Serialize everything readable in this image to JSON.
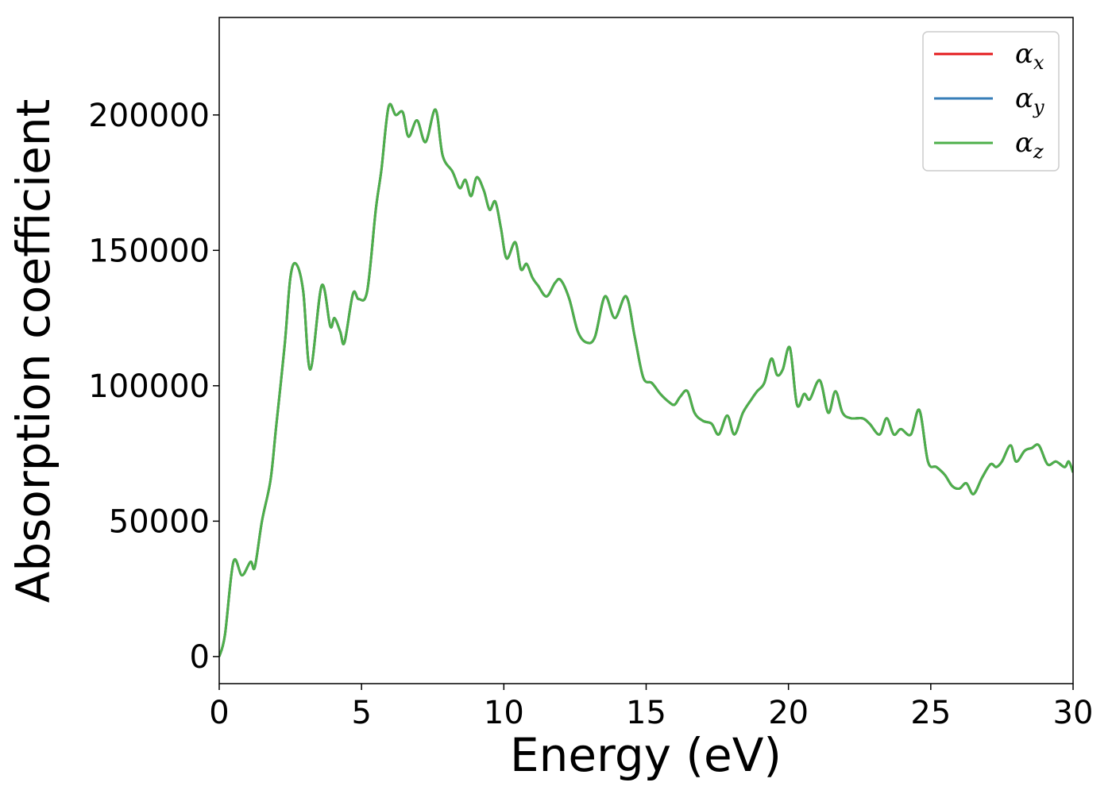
{
  "chart_data": {
    "type": "line",
    "title": "",
    "xlabel": "Energy (eV)",
    "ylabel": "Absorption coefficient",
    "xlim": [
      0,
      30
    ],
    "ylim": [
      -10000,
      236000
    ],
    "xticks": [
      0,
      5,
      10,
      15,
      20,
      25,
      30
    ],
    "xtick_labels": [
      "0",
      "5",
      "10",
      "15",
      "20",
      "25",
      "30"
    ],
    "yticks": [
      0,
      50000,
      100000,
      150000,
      200000
    ],
    "ytick_labels": [
      "0",
      "50000",
      "100000",
      "150000",
      "200000"
    ],
    "grid": false,
    "legend_position": "top-right",
    "x": [
      0,
      0.2,
      0.5,
      0.8,
      1.1,
      1.25,
      1.5,
      1.8,
      2.0,
      2.3,
      2.5,
      2.7,
      2.95,
      3.2,
      3.6,
      3.9,
      4.05,
      4.25,
      4.4,
      4.7,
      4.9,
      5.2,
      5.5,
      5.7,
      5.95,
      6.2,
      6.45,
      6.65,
      6.95,
      7.25,
      7.6,
      7.85,
      8.2,
      8.45,
      8.65,
      8.85,
      9.05,
      9.3,
      9.5,
      9.7,
      9.9,
      10.1,
      10.4,
      10.6,
      10.8,
      11.0,
      11.2,
      11.5,
      11.8,
      12.0,
      12.3,
      12.6,
      12.9,
      13.2,
      13.55,
      13.9,
      14.3,
      14.6,
      14.9,
      15.2,
      15.5,
      15.8,
      16.0,
      16.2,
      16.45,
      16.7,
      17.0,
      17.3,
      17.55,
      17.85,
      18.1,
      18.4,
      18.7,
      18.9,
      19.15,
      19.4,
      19.6,
      19.8,
      20.05,
      20.3,
      20.55,
      20.75,
      21.1,
      21.4,
      21.65,
      21.9,
      22.2,
      22.6,
      22.85,
      23.2,
      23.45,
      23.7,
      23.95,
      24.3,
      24.6,
      24.9,
      25.2,
      25.5,
      25.75,
      26.0,
      26.25,
      26.5,
      26.8,
      27.1,
      27.3,
      27.5,
      27.8,
      28.0,
      28.3,
      28.55,
      28.8,
      29.1,
      29.4,
      29.7,
      29.85,
      30.0
    ],
    "series": [
      {
        "name": "α",
        "subscript": "x",
        "color": "#e41a1c",
        "y": [
          0,
          8000,
          35000,
          30000,
          35000,
          33000,
          50000,
          65000,
          85000,
          115000,
          140000,
          145000,
          135000,
          106000,
          137000,
          122000,
          125000,
          120000,
          116000,
          134000,
          132000,
          135000,
          165000,
          180000,
          203000,
          200000,
          201000,
          192000,
          198000,
          190000,
          202000,
          185000,
          179000,
          173000,
          176000,
          170000,
          177000,
          172000,
          165000,
          168000,
          158000,
          147000,
          153000,
          143000,
          145000,
          140000,
          137000,
          133000,
          138000,
          139000,
          132000,
          120000,
          116000,
          118000,
          133000,
          125000,
          133000,
          118000,
          103000,
          101000,
          97000,
          94000,
          93000,
          96000,
          98000,
          90000,
          87000,
          86000,
          82000,
          89000,
          82000,
          90000,
          95000,
          98000,
          101000,
          110000,
          104000,
          106000,
          114000,
          93000,
          97000,
          95000,
          102000,
          90000,
          98000,
          90000,
          88000,
          88000,
          86000,
          82000,
          88000,
          82000,
          84000,
          82000,
          91000,
          72000,
          70000,
          67000,
          63000,
          62000,
          64000,
          60000,
          66000,
          71000,
          70000,
          72000,
          78000,
          72000,
          76000,
          77000,
          78000,
          71000,
          72000,
          70000,
          72000,
          68000
        ]
      },
      {
        "name": "α",
        "subscript": "y",
        "color": "#377eb8",
        "y": [
          0,
          8000,
          35000,
          30000,
          35000,
          33000,
          50000,
          65000,
          85000,
          115000,
          140000,
          145000,
          135000,
          106000,
          137000,
          122000,
          125000,
          120000,
          116000,
          134000,
          132000,
          135000,
          165000,
          180000,
          203000,
          200000,
          201000,
          192000,
          198000,
          190000,
          202000,
          185000,
          179000,
          173000,
          176000,
          170000,
          177000,
          172000,
          165000,
          168000,
          158000,
          147000,
          153000,
          143000,
          145000,
          140000,
          137000,
          133000,
          138000,
          139000,
          132000,
          120000,
          116000,
          118000,
          133000,
          125000,
          133000,
          118000,
          103000,
          101000,
          97000,
          94000,
          93000,
          96000,
          98000,
          90000,
          87000,
          86000,
          82000,
          89000,
          82000,
          90000,
          95000,
          98000,
          101000,
          110000,
          104000,
          106000,
          114000,
          93000,
          97000,
          95000,
          102000,
          90000,
          98000,
          90000,
          88000,
          88000,
          86000,
          82000,
          88000,
          82000,
          84000,
          82000,
          91000,
          72000,
          70000,
          67000,
          63000,
          62000,
          64000,
          60000,
          66000,
          71000,
          70000,
          72000,
          78000,
          72000,
          76000,
          77000,
          78000,
          71000,
          72000,
          70000,
          72000,
          68000
        ]
      },
      {
        "name": "α",
        "subscript": "z",
        "color": "#4daf4a",
        "y": [
          0,
          8000,
          35000,
          30000,
          35000,
          33000,
          50000,
          65000,
          85000,
          115000,
          140000,
          145000,
          135000,
          106000,
          137000,
          122000,
          125000,
          120000,
          116000,
          134000,
          132000,
          135000,
          165000,
          180000,
          203000,
          200000,
          201000,
          192000,
          198000,
          190000,
          202000,
          185000,
          179000,
          173000,
          176000,
          170000,
          177000,
          172000,
          165000,
          168000,
          158000,
          147000,
          153000,
          143000,
          145000,
          140000,
          137000,
          133000,
          138000,
          139000,
          132000,
          120000,
          116000,
          118000,
          133000,
          125000,
          133000,
          118000,
          103000,
          101000,
          97000,
          94000,
          93000,
          96000,
          98000,
          90000,
          87000,
          86000,
          82000,
          89000,
          82000,
          90000,
          95000,
          98000,
          101000,
          110000,
          104000,
          106000,
          114000,
          93000,
          97000,
          95000,
          102000,
          90000,
          98000,
          90000,
          88000,
          88000,
          86000,
          82000,
          88000,
          82000,
          84000,
          82000,
          91000,
          72000,
          70000,
          67000,
          63000,
          62000,
          64000,
          60000,
          66000,
          71000,
          70000,
          72000,
          78000,
          72000,
          76000,
          77000,
          78000,
          71000,
          72000,
          70000,
          72000,
          68000
        ]
      }
    ]
  }
}
